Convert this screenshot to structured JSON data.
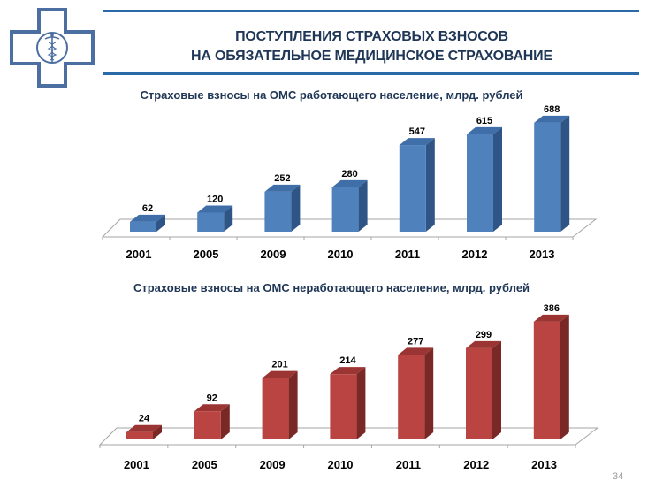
{
  "header": {
    "title_line1": "ПОСТУПЛЕНИЯ СТРАХОВЫХ ВЗНОСОВ",
    "title_line2": "НА ОБЯЗАТЕЛЬНОЕ МЕДИЦИНСКОЕ СТРАХОВАНИЕ",
    "logo_icon": "medical-cross-caduceus-icon",
    "accent_color": "#2a6aa8"
  },
  "page_number": "34",
  "chart_data": [
    {
      "type": "bar",
      "title": "Страховые взносы на ОМС работающего население, млрд. рублей",
      "categories": [
        "2001",
        "2005",
        "2009",
        "2010",
        "2011",
        "2012",
        "2013"
      ],
      "values": [
        62,
        120,
        252,
        280,
        547,
        615,
        688
      ],
      "labels": [
        "62",
        "120",
        "252",
        "280",
        "547",
        "615",
        "688"
      ],
      "xlabel": "",
      "ylabel": "",
      "style": "3d-column",
      "color": "#4f81bd",
      "grid": false,
      "legend": "none"
    },
    {
      "type": "bar",
      "title": "Страховые взносы на ОМС неработающего население,  млрд. рублей",
      "categories": [
        "2001",
        "2005",
        "2009",
        "2010",
        "2011",
        "2012",
        "2013"
      ],
      "values": [
        24,
        92,
        201,
        214,
        277,
        299,
        386
      ],
      "labels": [
        "24",
        "92",
        "201",
        "214",
        "277",
        "299",
        "386"
      ],
      "xlabel": "",
      "ylabel": "",
      "style": "3d-column",
      "color": "#c0504d",
      "grid": false,
      "legend": "none"
    }
  ]
}
